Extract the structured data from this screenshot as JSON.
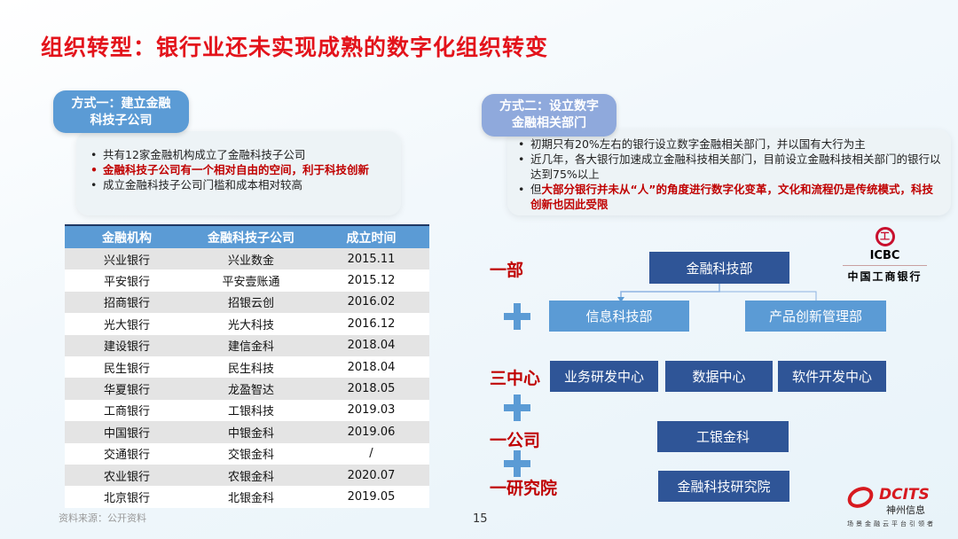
{
  "title": "组织转型：银行业还未实现成熟的数字化组织转变",
  "left": {
    "tag_line1": "方式一：建立金融",
    "tag_line2": "科技子公司",
    "bullets": [
      "共有12家金融机构成立了金融科技子公司",
      "金融科技子公司有一个相对自由的空间，利于科技创新",
      "成立金融科技子公司门槛和成本相对较高"
    ],
    "table": {
      "headers": [
        "金融机构",
        "金融科技子公司",
        "成立时间"
      ],
      "rows": [
        [
          "兴业银行",
          "兴业数金",
          "2015.11"
        ],
        [
          "平安银行",
          "平安壹账通",
          "2015.12"
        ],
        [
          "招商银行",
          "招银云创",
          "2016.02"
        ],
        [
          "光大银行",
          "光大科技",
          "2016.12"
        ],
        [
          "建设银行",
          "建信金科",
          "2018.04"
        ],
        [
          "民生银行",
          "民生科技",
          "2018.04"
        ],
        [
          "华夏银行",
          "龙盈智达",
          "2018.05"
        ],
        [
          "工商银行",
          "工银科技",
          "2019.03"
        ],
        [
          "中国银行",
          "中银金科",
          "2019.06"
        ],
        [
          "交通银行",
          "交银金科",
          "/"
        ],
        [
          "农业银行",
          "农银金科",
          "2020.07"
        ],
        [
          "北京银行",
          "北银金科",
          "2019.05"
        ]
      ]
    },
    "source": "资料来源：公开资料"
  },
  "right": {
    "tag_line1": "方式二：设立数字",
    "tag_line2": "金融相关部门",
    "bullet1": "初期只有20%左右的银行设立数字金融相关部门，并以国有大行为主",
    "bullet2": "近几年，各大银行加速成立金融科技相关部门，目前设立金融科技相关部门的银行以达到75%以上",
    "bullet3_prefix": "但",
    "bullet3_red": "大部分银行并未从“人”的角度进行数字化变革，文化和流程仍是传统模式，科技创新也因此受限",
    "labels": {
      "dept": "一部",
      "centers": "三中心",
      "company": "一公司",
      "institute": "一研究院"
    },
    "org": {
      "top": "金融科技部",
      "info": "信息科技部",
      "product": "产品创新管理部",
      "c1": "业务研发中心",
      "c2": "数据中心",
      "c3": "软件开发中心",
      "company": "工银金科",
      "institute": "金融科技研究院"
    },
    "icbc": {
      "abbr": "ICBC",
      "name": "中国工商银行"
    }
  },
  "page_number": "15",
  "brand": {
    "name": "DCITS",
    "cn": "神州信息",
    "slogan": "场景金融云平台引领者"
  },
  "colors": {
    "title": "#e3131b",
    "dark_box": "#2f5597",
    "light_box": "#5b9bd5"
  }
}
